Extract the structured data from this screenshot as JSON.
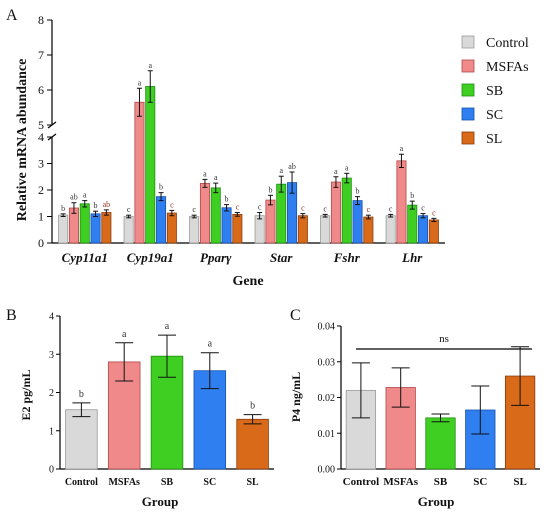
{
  "panels": {
    "A": "A",
    "B": "B",
    "C": "C"
  },
  "colors": {
    "Control": "#d9d9d9",
    "MSFAs": "#f08a8a",
    "SB": "#3fcf22",
    "SC": "#2f7ff0",
    "SL": "#d96a1a",
    "Control_stroke": "#9a9a9a",
    "MSFAs_stroke": "#b04848",
    "SB_stroke": "#1f8f12",
    "SC_stroke": "#1650b0",
    "SL_stroke": "#8a3a0a",
    "letter": "#333333",
    "letter_SL": "#a03020"
  },
  "chart_data": [
    {
      "id": "A",
      "type": "bar",
      "ylabel": "Relative mRNA abundance",
      "xlabel": "Gene",
      "categories": [
        "Cyp11a1",
        "Cyp19a1",
        "Pparγ",
        "Star",
        "Fshr",
        "Lhr"
      ],
      "y_break": {
        "lower_max": 4,
        "upper_min": 5,
        "upper_max": 8
      },
      "yticks": [
        "0",
        "1",
        "2",
        "3",
        "4",
        "5",
        "6",
        "7",
        "8"
      ],
      "series": [
        {
          "name": "Control",
          "values": [
            1.05,
            1.0,
            1.0,
            1.03,
            1.03,
            1.03
          ],
          "errors": [
            0.05,
            0.05,
            0.05,
            0.12,
            0.05,
            0.05
          ],
          "letters": [
            "b",
            "c",
            "c",
            "c",
            "c",
            "c"
          ]
        },
        {
          "name": "MSFAs",
          "values": [
            1.32,
            5.65,
            2.25,
            1.62,
            2.3,
            3.1
          ],
          "errors": [
            0.2,
            0.4,
            0.15,
            0.18,
            0.2,
            0.25
          ],
          "letters": [
            "ab",
            "a",
            "a",
            "b",
            "a",
            "a"
          ]
        },
        {
          "name": "SB",
          "values": [
            1.48,
            6.1,
            2.08,
            2.22,
            2.45,
            1.43
          ],
          "errors": [
            0.12,
            0.45,
            0.18,
            0.3,
            0.18,
            0.15
          ],
          "letters": [
            "a",
            "a",
            "a",
            "a",
            "a",
            "b"
          ]
        },
        {
          "name": "SC",
          "values": [
            1.1,
            1.75,
            1.33,
            2.28,
            1.6,
            1.03
          ],
          "errors": [
            0.1,
            0.15,
            0.12,
            0.4,
            0.15,
            0.08
          ],
          "letters": [
            "b",
            "b",
            "b",
            "ab",
            "b",
            "c"
          ]
        },
        {
          "name": "SL",
          "values": [
            1.15,
            1.13,
            1.08,
            1.03,
            0.98,
            0.87
          ],
          "errors": [
            0.1,
            0.1,
            0.07,
            0.08,
            0.07,
            0.06
          ],
          "letters": [
            "ab",
            "c",
            "c",
            "c",
            "c",
            "c"
          ]
        }
      ],
      "legend": [
        "Control",
        "MSFAs",
        "SB",
        "SC",
        "SL"
      ],
      "legend_position": "right"
    },
    {
      "id": "B",
      "type": "bar",
      "ylabel": "E2 pg/mL",
      "xlabel": "Group",
      "categories": [
        "Control",
        "MSFAs",
        "SB",
        "SC",
        "SL"
      ],
      "values": [
        1.55,
        2.8,
        2.95,
        2.57,
        1.3
      ],
      "errors": [
        0.18,
        0.5,
        0.55,
        0.47,
        0.12
      ],
      "letters": [
        "b",
        "a",
        "a",
        "a",
        "b"
      ],
      "ylim": [
        0,
        4
      ],
      "yticks": [
        "0",
        "1",
        "2",
        "3",
        "4"
      ]
    },
    {
      "id": "C",
      "type": "bar",
      "ylabel": "P4 ng/mL",
      "xlabel": "Group",
      "categories": [
        "Control",
        "MSFAs",
        "SB",
        "SC",
        "SL"
      ],
      "values": [
        0.022,
        0.0228,
        0.0143,
        0.0165,
        0.026
      ],
      "errors": [
        0.0077,
        0.0055,
        0.0011,
        0.0067,
        0.0082
      ],
      "ylim": [
        0,
        0.04
      ],
      "yticks": [
        "0.00",
        "0.01",
        "0.02",
        "0.03",
        "0.04"
      ],
      "annotation": "ns"
    }
  ]
}
